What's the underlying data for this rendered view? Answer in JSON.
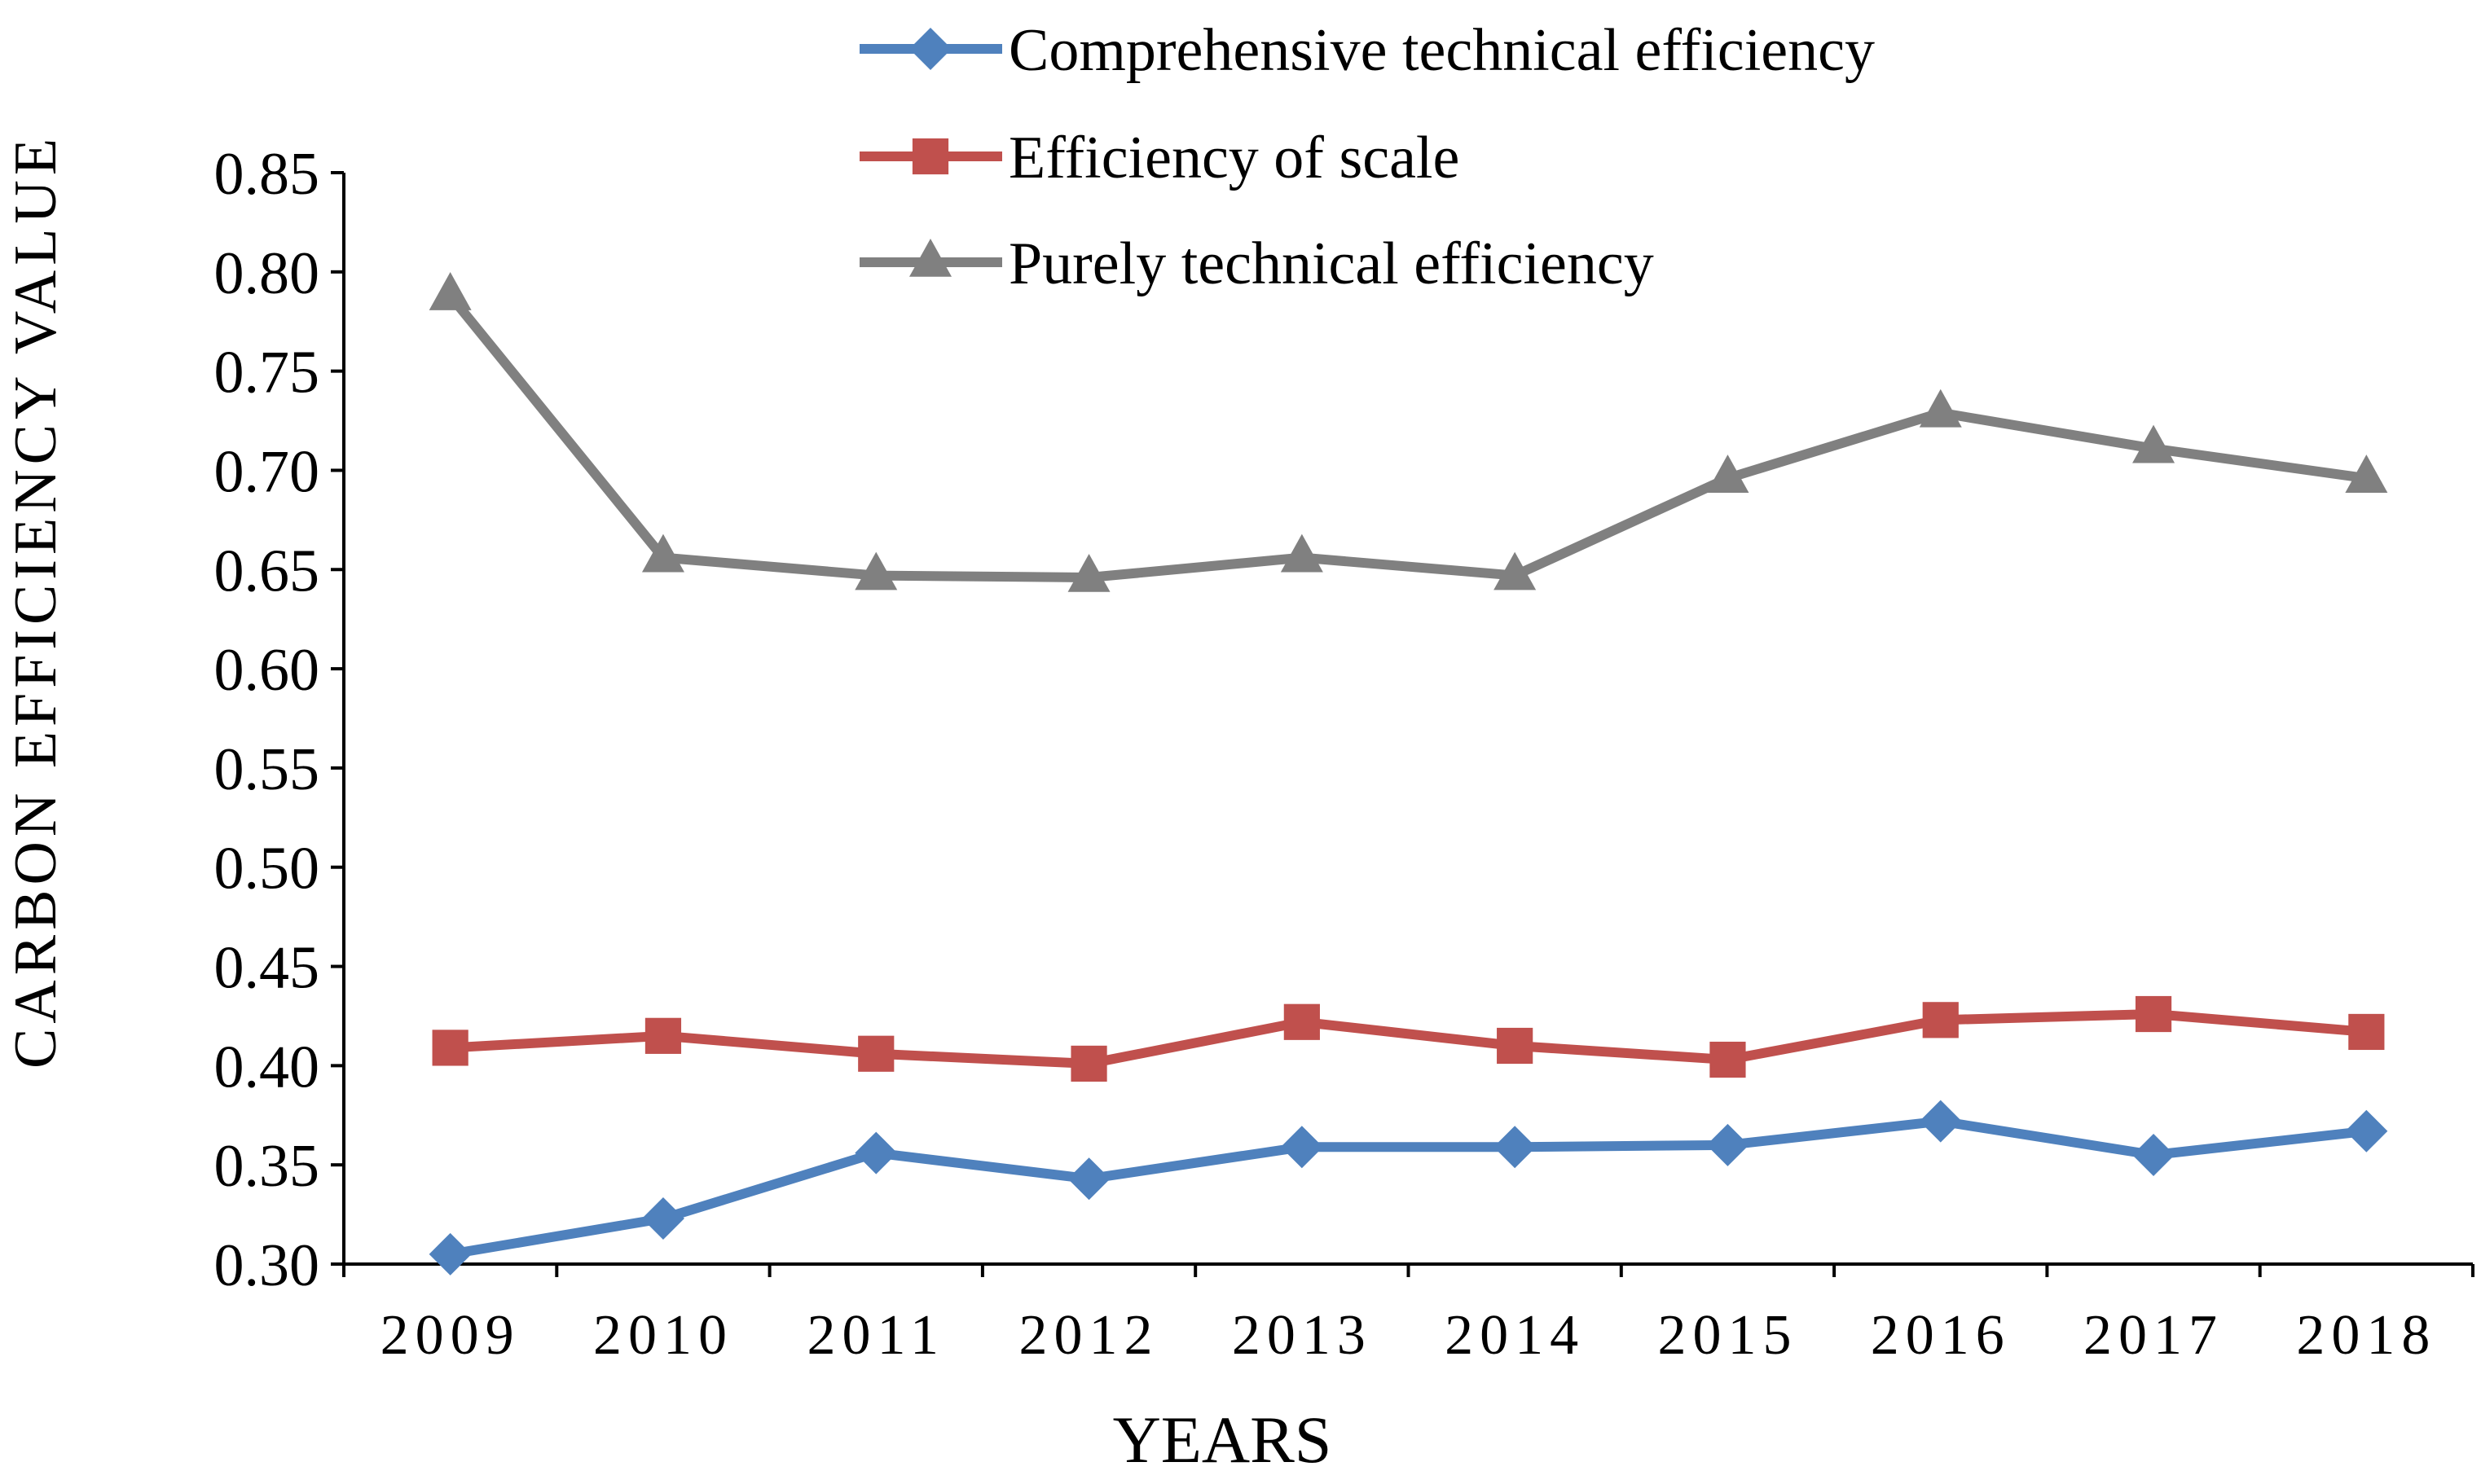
{
  "chart_data": {
    "type": "line",
    "title": "",
    "xlabel": "YEARS",
    "ylabel": "CARBON EFFICIENCY VALUE",
    "categories": [
      "2009",
      "2010",
      "2011",
      "2012",
      "2013",
      "2014",
      "2015",
      "2016",
      "2017",
      "2018"
    ],
    "ylim": [
      0.3,
      0.85
    ],
    "yticks": [
      "0.30",
      "0.35",
      "0.40",
      "0.45",
      "0.50",
      "0.55",
      "0.60",
      "0.65",
      "0.70",
      "0.75",
      "0.80",
      "0.85"
    ],
    "grid": false,
    "legend_position": "top-center",
    "series": [
      {
        "name": "Comprehensive technical efficiency",
        "marker": "diamond",
        "color": "#4f81bd",
        "values": [
          0.305,
          0.323,
          0.356,
          0.343,
          0.359,
          0.359,
          0.36,
          0.372,
          0.355,
          0.367
        ]
      },
      {
        "name": "Efficiency of scale",
        "marker": "square",
        "color": "#c0504d",
        "values": [
          0.409,
          0.415,
          0.406,
          0.401,
          0.422,
          0.41,
          0.403,
          0.423,
          0.426,
          0.417
        ]
      },
      {
        "name": "Purely technical efficiency",
        "marker": "triangle",
        "color": "#808080",
        "values": [
          0.788,
          0.656,
          0.647,
          0.646,
          0.656,
          0.647,
          0.696,
          0.729,
          0.711,
          0.696
        ]
      }
    ]
  }
}
